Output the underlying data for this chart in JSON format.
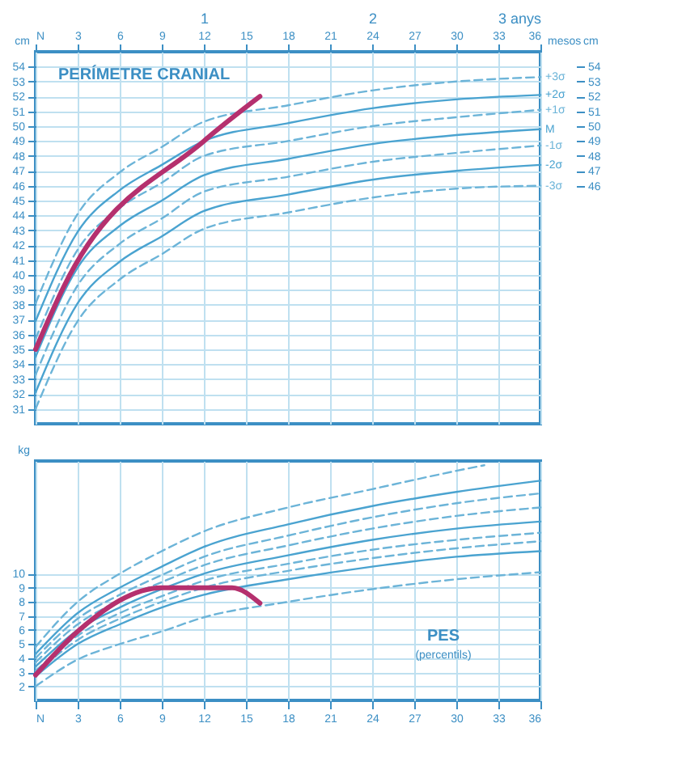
{
  "chart_data": [
    {
      "type": "line",
      "title": "PERÍMETRE CRANIAL",
      "ylabel": "cm",
      "y2label": "cm",
      "xlabel": "mesos",
      "xlim": [
        0,
        36
      ],
      "xticks": [
        {
          "value": 0,
          "label": "N"
        },
        3,
        6,
        9,
        12,
        15,
        18,
        21,
        24,
        27,
        30,
        33,
        36
      ],
      "x2lim": [
        0,
        3
      ],
      "x2ticks": [
        1,
        2,
        {
          "value": 3,
          "label": "3 anys"
        }
      ],
      "ylim": [
        30,
        55
      ],
      "yticks": [
        31,
        32,
        33,
        34,
        35,
        36,
        37,
        38,
        39,
        40,
        41,
        42,
        43,
        44,
        45,
        46,
        47,
        48,
        49,
        50,
        51,
        52,
        53,
        54
      ],
      "y2lim": [
        30,
        55
      ],
      "y2ticks": [
        46,
        47,
        48,
        49,
        50,
        51,
        52,
        53,
        54
      ],
      "grid": true,
      "x": [
        0,
        3,
        6,
        9,
        12,
        18,
        24,
        30,
        36
      ],
      "series": [
        {
          "name": "+3σ",
          "color": "#6cb4d8",
          "line_style": "dashed",
          "values": [
            38.1,
            44.1,
            46.9,
            48.6,
            50.3,
            51.4,
            52.4,
            53.0,
            53.3
          ]
        },
        {
          "name": "+2σ",
          "color": "#4aa3d0",
          "line_style": "solid",
          "values": [
            36.9,
            42.9,
            45.7,
            47.4,
            49.0,
            50.2,
            51.2,
            51.8,
            52.1
          ]
        },
        {
          "name": "+1σ",
          "color": "#6cb4d8",
          "line_style": "dashed",
          "values": [
            35.7,
            41.7,
            44.5,
            46.2,
            48.0,
            49.0,
            50.0,
            50.6,
            51.1
          ]
        },
        {
          "name": "M",
          "color": "#4aa3d0",
          "line_style": "solid",
          "values": [
            34.5,
            40.5,
            43.3,
            45.0,
            46.7,
            47.8,
            48.8,
            49.4,
            49.8
          ]
        },
        {
          "name": "-1σ",
          "color": "#6cb4d8",
          "line_style": "dashed",
          "values": [
            33.3,
            39.3,
            42.1,
            43.8,
            45.6,
            46.6,
            47.6,
            48.2,
            48.7
          ]
        },
        {
          "name": "-2σ",
          "color": "#4aa3d0",
          "line_style": "solid",
          "values": [
            32.1,
            38.1,
            40.9,
            42.6,
            44.3,
            45.4,
            46.4,
            47.0,
            47.4
          ]
        },
        {
          "name": "-3σ",
          "color": "#6cb4d8",
          "line_style": "dashed",
          "values": [
            31.0,
            36.9,
            39.7,
            41.4,
            43.1,
            44.2,
            45.2,
            45.8,
            46.0
          ]
        },
        {
          "color": "#b5306e",
          "x": [
            0,
            2,
            12,
            16
          ],
          "values": [
            35,
            39.2,
            49,
            52
          ]
        }
      ]
    },
    {
      "type": "line",
      "title": "PES",
      "subtitle": "(percentils)",
      "ylabel": "kg",
      "xlim": [
        0,
        36
      ],
      "xticks": [
        {
          "value": 0,
          "label": "N"
        },
        3,
        6,
        9,
        12,
        15,
        18,
        21,
        24,
        27,
        30,
        33,
        36
      ],
      "ylim": [
        1,
        18
      ],
      "yticks": [
        2,
        3,
        4,
        5,
        6,
        7,
        8,
        9,
        10
      ],
      "grid": true,
      "x": [
        0,
        3,
        6,
        9,
        12,
        18,
        24,
        30,
        36
      ],
      "series": [
        {
          "color": "#6cb4d8",
          "line_style": "dashed",
          "x": [
            0,
            3,
            6,
            9,
            12,
            18,
            24,
            30,
            32
          ],
          "values": [
            4.8,
            8.0,
            10.0,
            11.6,
            13.0,
            14.7,
            16.0,
            17.3,
            17.7
          ]
        },
        {
          "color": "#4aa3d0",
          "line_style": "solid",
          "values": [
            4.3,
            7.2,
            9.0,
            10.5,
            11.9,
            13.5,
            14.8,
            15.8,
            16.6
          ]
        },
        {
          "color": "#6cb4d8",
          "line_style": "dashed",
          "values": [
            4.0,
            6.8,
            8.5,
            9.9,
            11.2,
            12.7,
            14.0,
            15.0,
            15.7
          ]
        },
        {
          "color": "#6cb4d8",
          "line_style": "dashed",
          "values": [
            3.7,
            6.4,
            8.1,
            9.4,
            10.6,
            12.0,
            13.2,
            14.1,
            14.7
          ]
        },
        {
          "color": "#4aa3d0",
          "line_style": "solid",
          "values": [
            3.4,
            6.0,
            7.6,
            8.9,
            10.0,
            11.3,
            12.4,
            13.2,
            13.7
          ]
        },
        {
          "color": "#6cb4d8",
          "line_style": "dashed",
          "values": [
            3.1,
            5.6,
            7.2,
            8.4,
            9.5,
            10.7,
            11.7,
            12.4,
            12.9
          ]
        },
        {
          "color": "#6cb4d8",
          "line_style": "dashed",
          "values": [
            2.9,
            5.3,
            6.8,
            8.0,
            9.0,
            10.2,
            11.1,
            11.8,
            12.3
          ]
        },
        {
          "color": "#4aa3d0",
          "line_style": "solid",
          "values": [
            2.7,
            5.0,
            6.4,
            7.6,
            8.5,
            9.6,
            10.5,
            11.2,
            11.6
          ]
        },
        {
          "color": "#6cb4d8",
          "line_style": "dashed",
          "values": [
            2.0,
            3.9,
            5.0,
            5.9,
            6.9,
            8.0,
            8.9,
            9.6,
            10.1
          ]
        },
        {
          "color": "#b5306e",
          "x": [
            0,
            3,
            9,
            14,
            16
          ],
          "values": [
            2.8,
            5.9,
            9.0,
            9.0,
            7.9
          ]
        }
      ]
    }
  ]
}
